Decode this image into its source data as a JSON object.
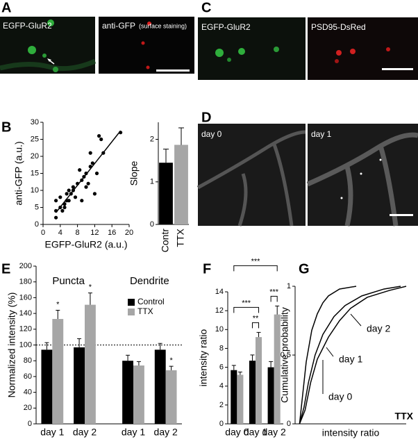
{
  "panel_labels": [
    "A",
    "B",
    "C",
    "D",
    "E",
    "F",
    "G"
  ],
  "images": [
    {
      "label": "EGFP-GluR2"
    },
    {
      "label": "anti-GFP",
      "note": "(surface staining)"
    },
    {
      "label": "EGFP-GluR2"
    },
    {
      "label": "PSD95-DsRed"
    },
    {
      "label": "day 0"
    },
    {
      "label": "day 1"
    }
  ],
  "chart_data": [
    {
      "type": "scatter",
      "x_label": "EGFP-GluR2 (a.u.)",
      "y_label": "anti-GFP (a.u.)",
      "x": [
        3,
        3,
        3,
        4,
        4,
        4.5,
        5,
        5,
        5.5,
        5.5,
        6,
        6,
        6.5,
        7,
        7,
        7.5,
        8,
        8.5,
        9,
        9,
        9.5,
        10,
        10,
        10.5,
        11,
        11,
        11.5,
        12,
        12.5,
        13,
        13.5,
        14,
        18
      ],
      "values": [
        2,
        4,
        7,
        8,
        5,
        4,
        6,
        5,
        7,
        9,
        7,
        10,
        9,
        11,
        10,
        8,
        12,
        16,
        13,
        7,
        14,
        15,
        11,
        12,
        21,
        17,
        18,
        9,
        15,
        26,
        25,
        21,
        27
      ],
      "fit": {
        "x": [
          3,
          18
        ],
        "values": [
          3.5,
          27.5
        ]
      },
      "color": "#000000",
      "xlim": [
        0,
        20
      ],
      "ylim": [
        0,
        30
      ],
      "xticks": [
        0,
        4,
        8,
        12,
        16,
        20
      ],
      "yticks": [
        0,
        5,
        10,
        15,
        20,
        25,
        30
      ]
    },
    {
      "type": "bar",
      "y_label": "Slope",
      "categories": [
        "Contr",
        "TTX"
      ],
      "values": [
        1.45,
        1.87
      ],
      "errors": [
        0.32,
        0.4
      ],
      "colors": [
        "#000000",
        "#a6a6a6"
      ],
      "ylim": [
        0,
        2.4
      ],
      "yticks": [
        0,
        1,
        2
      ]
    },
    {
      "type": "bar",
      "y_label": "Normalized intensity (%)",
      "categories": [
        "day 1",
        "day 2",
        "day 1",
        "day 2"
      ],
      "group_labels": [
        "Puncta",
        "Dendrite"
      ],
      "series": [
        {
          "name": "Control",
          "color": "#000000",
          "values": [
            94,
            97,
            80,
            94
          ],
          "errors": [
            9,
            11,
            7,
            8
          ]
        },
        {
          "name": "TTX",
          "color": "#a6a6a6",
          "values": [
            133,
            151,
            74,
            68
          ],
          "errors": [
            11,
            15,
            5,
            5
          ],
          "annotations": [
            "*",
            "*",
            null,
            "*"
          ]
        }
      ],
      "reference_line": 100,
      "legend": "upper right",
      "ylim": [
        0,
        200
      ],
      "yticks": [
        0,
        20,
        40,
        60,
        80,
        100,
        120,
        140,
        160,
        180,
        200
      ]
    },
    {
      "type": "bar",
      "y_label": "intensity ratio",
      "categories": [
        "day 0",
        "day 1",
        "day 2"
      ],
      "series": [
        {
          "name": "Control",
          "color": "#000000",
          "values": [
            5.7,
            6.7,
            6.0
          ],
          "errors": [
            0.5,
            0.6,
            0.6
          ]
        },
        {
          "name": "TTX",
          "color": "#a6a6a6",
          "values": [
            5.2,
            9.2,
            11.6
          ],
          "errors": [
            0.3,
            0.5,
            0.9
          ]
        }
      ],
      "comparisons": [
        {
          "label": "**",
          "from": [
            0,
            1
          ],
          "to": [
            1,
            1
          ]
        },
        {
          "label": "***",
          "from": [
            0,
            2
          ],
          "to": [
            1,
            2
          ]
        },
        {
          "label": "***",
          "from": [
            0,
            0
          ],
          "to": [
            1,
            1
          ]
        },
        {
          "label": "***",
          "from": [
            0,
            0
          ],
          "to": [
            1,
            2
          ]
        }
      ],
      "ylim": [
        0,
        14
      ],
      "yticks": [
        0,
        2,
        4,
        6,
        8,
        10,
        12,
        14
      ]
    },
    {
      "type": "line",
      "x_label": "intensity ratio",
      "y_label": "Cumulative probability",
      "note": "TTX",
      "series": [
        {
          "name": "day 0",
          "color": "#000000",
          "x": [
            0.4,
            0.6,
            1,
            1.5,
            2,
            2.5,
            3,
            4,
            5.5
          ],
          "values": [
            0,
            0.15,
            0.45,
            0.68,
            0.8,
            0.88,
            0.93,
            0.98,
            1
          ]
        },
        {
          "name": "day 1",
          "color": "#000000",
          "x": [
            0.4,
            0.8,
            1.2,
            1.8,
            2.5,
            3.5,
            4.5,
            6,
            8,
            9.5
          ],
          "values": [
            0,
            0.12,
            0.3,
            0.5,
            0.65,
            0.78,
            0.86,
            0.93,
            0.98,
            1
          ]
        },
        {
          "name": "day 2",
          "color": "#000000",
          "x": [
            0.4,
            0.9,
            1.4,
            2,
            3,
            4,
            5,
            6.5,
            8.5,
            10
          ],
          "values": [
            0,
            0.1,
            0.3,
            0.47,
            0.63,
            0.75,
            0.84,
            0.92,
            0.97,
            1
          ]
        }
      ],
      "xlim": [
        0,
        10
      ],
      "ylim": [
        0,
        1
      ],
      "yticks": [
        0,
        0.5,
        1
      ]
    }
  ]
}
